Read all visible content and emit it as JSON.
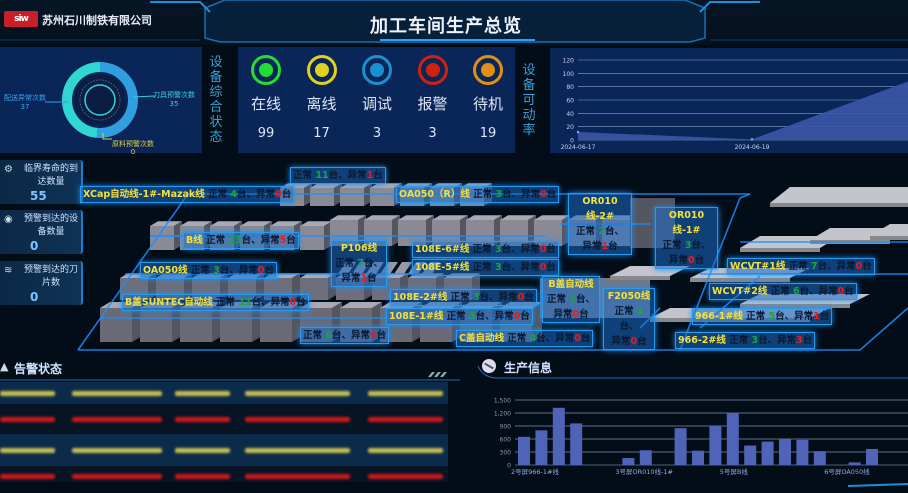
{
  "header": {
    "company": "苏州石川制铁有限公司",
    "logo_text": "siw",
    "title": "加工车间生产总览"
  },
  "donut": {
    "items": [
      {
        "label": "配送异常次数",
        "value": 37,
        "color": "#2f9fe0"
      },
      {
        "label": "刀具预警次数",
        "value": 35,
        "color": "#2fd6d2"
      },
      {
        "label": "原料预警次数",
        "value": 0,
        "color": "#e0d040"
      }
    ]
  },
  "status_title": "设备综合状态",
  "status": [
    {
      "label": "在线",
      "value": 99,
      "color": "#22dd33"
    },
    {
      "label": "离线",
      "value": 17,
      "color": "#e0d020"
    },
    {
      "label": "调试",
      "value": 3,
      "color": "#1a90d0"
    },
    {
      "label": "报警",
      "value": 3,
      "color": "#d02010"
    },
    {
      "label": "待机",
      "value": 19,
      "color": "#e09010"
    }
  ],
  "availability_title": "设备可动率",
  "chart_data": [
    {
      "type": "area",
      "x": [
        "2024-06-17",
        "2024-06-19",
        ""
      ],
      "values": [
        12,
        1,
        100
      ],
      "ylim": [
        0,
        120
      ],
      "yticks": [
        0,
        20,
        40,
        60,
        80,
        100,
        120
      ],
      "xticks": [
        "2024-06-17",
        "2024-06-19"
      ],
      "grid": true,
      "color": "#3b56a8"
    },
    {
      "type": "bar",
      "title": "生产信息",
      "categories": [
        "2号屏966-1#线",
        "",
        "",
        "",
        "",
        "",
        "3号屏OR010线-1#",
        "",
        "",
        "",
        "",
        "",
        "5号屏B线",
        "",
        "",
        "",
        "",
        "",
        "6号屏OA050线",
        "",
        ""
      ],
      "values": [
        650,
        800,
        1320,
        960,
        0,
        0,
        160,
        340,
        0,
        850,
        330,
        900,
        1190,
        450,
        540,
        600,
        580,
        320,
        0,
        60,
        370
      ],
      "ylim": [
        0,
        1500
      ],
      "yticks": [
        "0",
        "300",
        "600",
        "900",
        "1,200",
        "1,500"
      ],
      "grid": true,
      "color": "#4f64b8"
    }
  ],
  "cards": [
    {
      "icon": "gears-icon",
      "title": "临界寿命的到达数量",
      "value": "55"
    },
    {
      "icon": "shield-icon",
      "title": "预警到达的设备数量",
      "value": "0"
    },
    {
      "icon": "layers-icon",
      "title": "预警到达的刀片数",
      "value": "0"
    }
  ],
  "map": {
    "normal_label": "正常",
    "abnormal_label": "异常",
    "unit": "台",
    "sep": "、",
    "lines": [
      {
        "name": "XCap自动线-1#-Mazak线",
        "normal": 4,
        "abnormal": 0
      },
      {
        "name": "",
        "normal": 11,
        "abnormal": 1
      },
      {
        "name": "OA050（R）线",
        "normal": 3,
        "abnormal": 0
      },
      {
        "name": "OR010线-2#",
        "normal": 2,
        "abnormal": 1
      },
      {
        "name": "OR010线-1#",
        "normal": 3,
        "abnormal": 0
      },
      {
        "name": "B线",
        "normal": 23,
        "abnormal": 5
      },
      {
        "name": "P106线",
        "normal": 7,
        "abnormal": 1
      },
      {
        "name": "108E-6#线",
        "normal": 3,
        "abnormal": 0
      },
      {
        "name": "108E-5#线",
        "normal": 3,
        "abnormal": 0
      },
      {
        "name": "OA050线",
        "normal": 3,
        "abnormal": 0
      },
      {
        "name": "WCVT#1线",
        "normal": 7,
        "abnormal": 0
      },
      {
        "name": "B盖自动线",
        "normal": 3,
        "abnormal": 0
      },
      {
        "name": "F2050线",
        "normal": 4,
        "abnormal": 0
      },
      {
        "name": "WCVT#2线",
        "normal": 6,
        "abnormal": 0
      },
      {
        "name": "108E-2#线",
        "normal": 3,
        "abnormal": 0
      },
      {
        "name": "",
        "normal": 4,
        "abnormal": 0
      },
      {
        "name": "B盖SUNTEC自动线",
        "normal": 11,
        "abnormal": 0
      },
      {
        "name": "108E-1#线",
        "normal": 3,
        "abnormal": 0
      },
      {
        "name": "966-1#线",
        "normal": 5,
        "abnormal": 1
      },
      {
        "name": "C盖自动线",
        "normal": 4,
        "abnormal": 0
      },
      {
        "name": "966-2#线",
        "normal": 3,
        "abnormal": 3
      }
    ]
  },
  "alarm": {
    "title": "告警状态"
  },
  "production": {
    "title": "生产信息"
  }
}
